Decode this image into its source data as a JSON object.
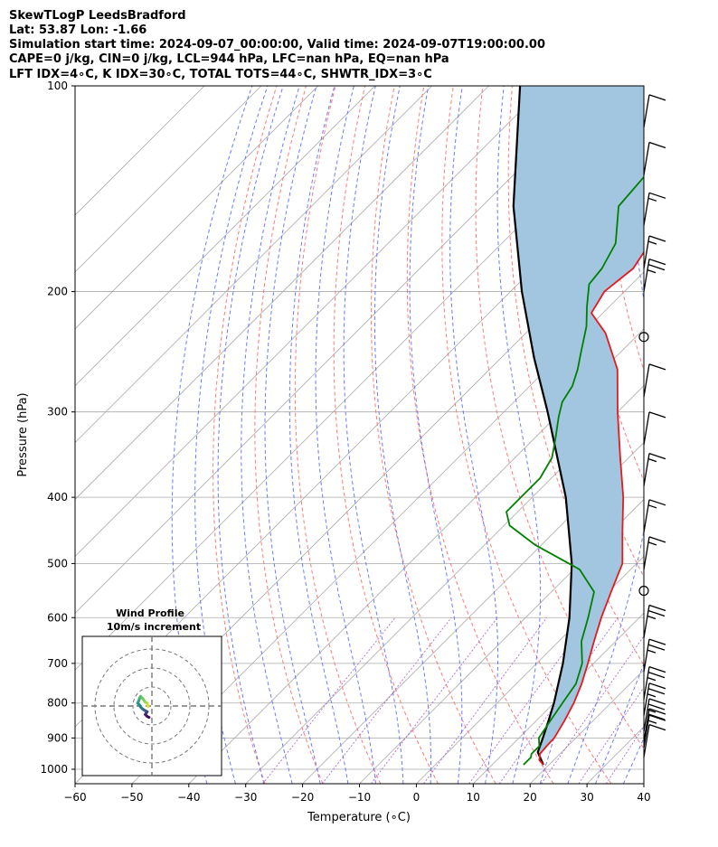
{
  "header": {
    "line1": "SkewTLogP LeedsBradford",
    "line2": "Lat: 53.87   Lon: -1.66",
    "line3": "Simulation start time: 2024-09-07_00:00:00, Valid time: 2024-09-07T19:00:00.00",
    "line4": "CAPE=0 j/kg, CIN=0 j/kg, LCL=944 hPa, LFC=nan hPa, EQ=nan hPa",
    "line5": "LFT IDX=4∘C, K IDX=30∘C, TOTAL TOTS=44∘C, SHWTR_IDX=3∘C"
  },
  "chart_data": {
    "type": "line",
    "title": "SkewTLogP LeedsBradford",
    "xlabel": "Temperature (∘C)",
    "ylabel": "Pressure (hPa)",
    "xlim": [
      -60,
      40
    ],
    "ylim": [
      1050,
      100
    ],
    "y_scale": "log",
    "skew": "isotherms skewed 45 degrees",
    "x_ticks": [
      -60,
      -50,
      -40,
      -30,
      -20,
      -10,
      0,
      10,
      20,
      30,
      40
    ],
    "y_ticks": [
      1000,
      900,
      800,
      700,
      600,
      500,
      400,
      300,
      200,
      100
    ],
    "grid": true,
    "series": [
      {
        "name": "Temperature",
        "color": "#e41a1c",
        "p": [
          985,
          970,
          950,
          925,
          900,
          850,
          800,
          750,
          700,
          650,
          600,
          550,
          500,
          450,
          400,
          350,
          300,
          260,
          230,
          215,
          200,
          185,
          170,
          155,
          140,
          125,
          110,
          100
        ],
        "t": [
          19.0,
          17.5,
          16.5,
          16.3,
          16.2,
          15.0,
          13.5,
          11.5,
          9.0,
          6.2,
          3.3,
          0.5,
          -2.5,
          -8.0,
          -14.0,
          -21.5,
          -30.0,
          -37.5,
          -46.0,
          -52.0,
          -53.5,
          -52.5,
          -54.0,
          -55.5,
          -57.0,
          -57.5,
          -61.0,
          -63.5
        ]
      },
      {
        "name": "Dewpoint",
        "color": "#008000",
        "p": [
          985,
          960,
          950,
          925,
          900,
          850,
          800,
          750,
          700,
          650,
          600,
          550,
          510,
          470,
          440,
          420,
          400,
          375,
          350,
          330,
          305,
          290,
          275,
          260,
          245,
          225,
          210,
          195,
          185,
          170,
          150,
          130,
          115,
          100
        ],
        "t": [
          15.5,
          15.5,
          15.0,
          15.0,
          13.5,
          12.5,
          11.5,
          10.5,
          8.0,
          4.0,
          1.0,
          -2.5,
          -9.0,
          -21.0,
          -29.0,
          -32.0,
          -32.0,
          -32.0,
          -33.5,
          -36.0,
          -39.5,
          -41.5,
          -42.5,
          -44.5,
          -47.0,
          -50.5,
          -54.0,
          -57.5,
          -58.0,
          -60.0,
          -66.0,
          -67.0,
          -70.0,
          -72.5
        ]
      },
      {
        "name": "Parcel",
        "color": "#000000",
        "p": [
          985,
          944,
          900,
          850,
          800,
          700,
          600,
          500,
          400,
          300,
          250,
          200,
          150,
          100
        ],
        "t": [
          19.0,
          15.8,
          14.2,
          12.2,
          10.0,
          4.6,
          -2.3,
          -11.4,
          -24.1,
          -42.3,
          -54.2,
          -68.0,
          -84.5,
          -104.5
        ]
      }
    ],
    "shading": {
      "between": [
        "Temperature",
        "Parcel"
      ],
      "color": "#a3c6e0"
    },
    "background_lines": {
      "isotherms": "#aaaaaa",
      "dry_adiabats": "#ff6b6b",
      "moist_adiabats": "#5b6cff",
      "mixing_ratio": "#9b46c8"
    },
    "wind_barbs": [
      {
        "p": 115,
        "speed_kt": 10
      },
      {
        "p": 135,
        "speed_kt": 10
      },
      {
        "p": 160,
        "speed_kt": 15
      },
      {
        "p": 185,
        "speed_kt": 15
      },
      {
        "p": 200,
        "speed_kt": 25
      },
      {
        "p": 233,
        "speed_kt": 0
      },
      {
        "p": 285,
        "speed_kt": 10
      },
      {
        "p": 335,
        "speed_kt": 10
      },
      {
        "p": 385,
        "speed_kt": 15
      },
      {
        "p": 450,
        "speed_kt": 15
      },
      {
        "p": 510,
        "speed_kt": 15
      },
      {
        "p": 548,
        "speed_kt": 0
      },
      {
        "p": 642,
        "speed_kt": 25
      },
      {
        "p": 720,
        "speed_kt": 25
      },
      {
        "p": 790,
        "speed_kt": 25
      },
      {
        "p": 835,
        "speed_kt": 25
      },
      {
        "p": 880,
        "speed_kt": 25
      },
      {
        "p": 910,
        "speed_kt": 20
      },
      {
        "p": 930,
        "speed_kt": 15
      },
      {
        "p": 960,
        "speed_kt": 10
      }
    ]
  },
  "inset": {
    "title_line1": "Wind Profile",
    "title_line2": "10m/s increment",
    "hodograph": {
      "u": [
        -2.0,
        -2.2,
        -2.5,
        -3.5,
        -4.5,
        -5.5,
        -6.0,
        -6.5,
        -7.0,
        -7.5,
        -6.5,
        -6.0,
        -5.0,
        -4.0,
        -3.5,
        -2.5,
        -3.0,
        -3.5,
        -2.5,
        -1.5
      ],
      "v": [
        -0.3,
        0.5,
        1.5,
        2.0,
        3.5,
        4.5,
        5.0,
        4.0,
        2.5,
        1.5,
        0.5,
        -0.5,
        -1.5,
        -2.2,
        -2.5,
        -3.0,
        -3.8,
        -4.5,
        -5.5,
        -6.0
      ]
    }
  }
}
